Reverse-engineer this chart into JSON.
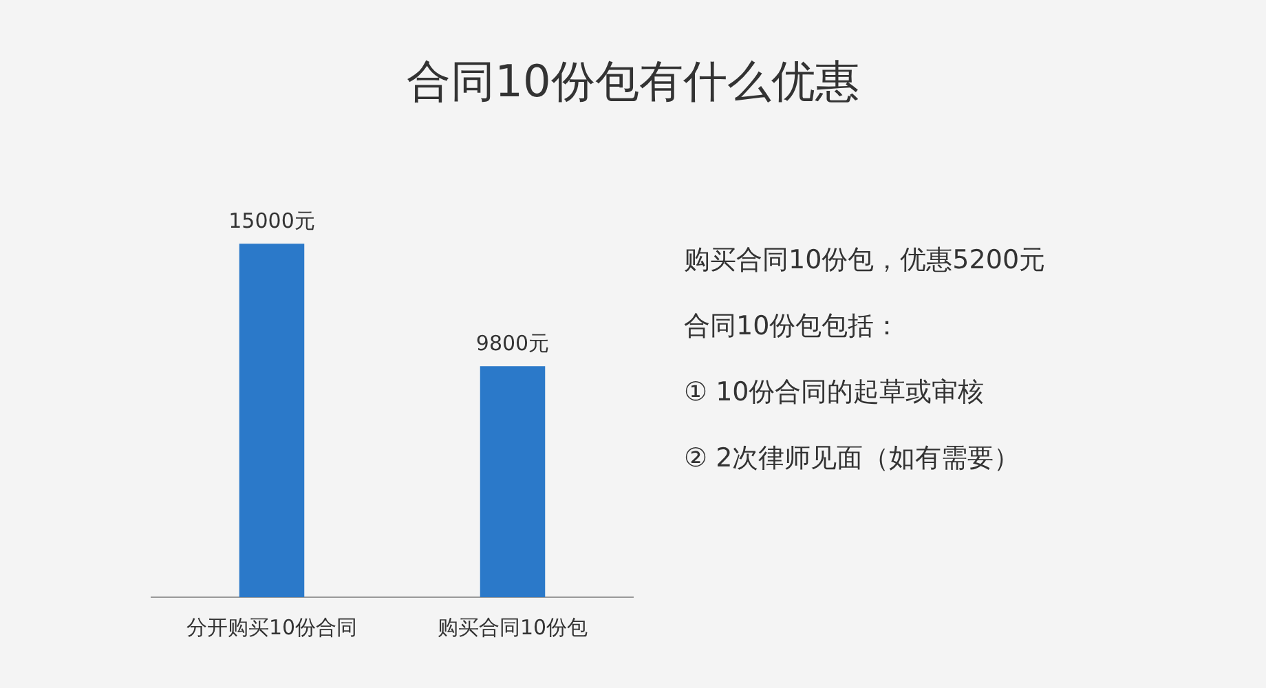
{
  "chart_data": {
    "type": "bar",
    "title": "合同10份包有什么优惠",
    "categories": [
      "分开购买10份合同",
      "购买合同10份包"
    ],
    "values": [
      15000,
      9800
    ],
    "color": "#2b79c9",
    "value_labels": [
      "15000元",
      "9800元"
    ],
    "grid": false,
    "legend": false,
    "tick_labels": "x",
    "annotations": [
      "购买合同10份包，优惠5200元",
      "合同10份包包括：",
      "① 10份合同的起草或审核",
      "② 2次律师见面（如有需要）"
    ]
  }
}
